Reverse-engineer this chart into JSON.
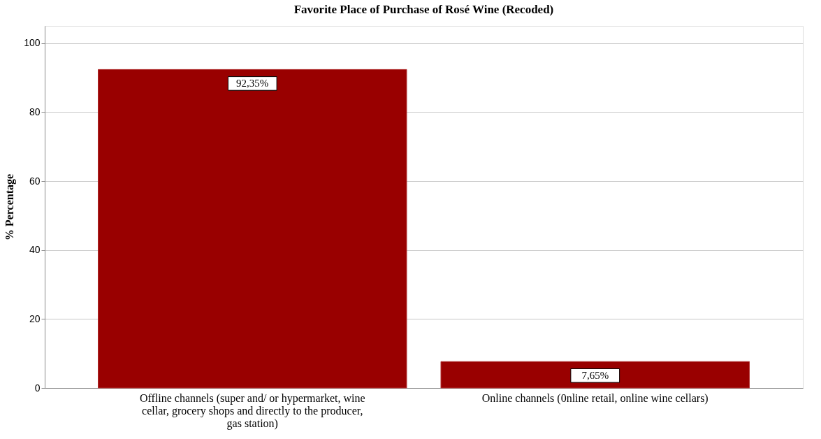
{
  "chart_data": {
    "type": "bar",
    "title": "Favorite Place of Purchase of Rosé Wine (Recoded)",
    "ylabel": "% Percentage",
    "categories": [
      "Offline channels (super and/ or hypermarket, wine cellar, grocery shops and directly to the producer, gas station)",
      "Online channels (0nline retail, online wine cellars)"
    ],
    "values": [
      92.35,
      7.65
    ],
    "value_labels": [
      "92,35%",
      "7,65%"
    ],
    "color": "#990000",
    "ylim": [
      0,
      105
    ],
    "yticks": [
      0,
      20,
      40,
      60,
      80,
      100
    ],
    "grid": "y"
  }
}
